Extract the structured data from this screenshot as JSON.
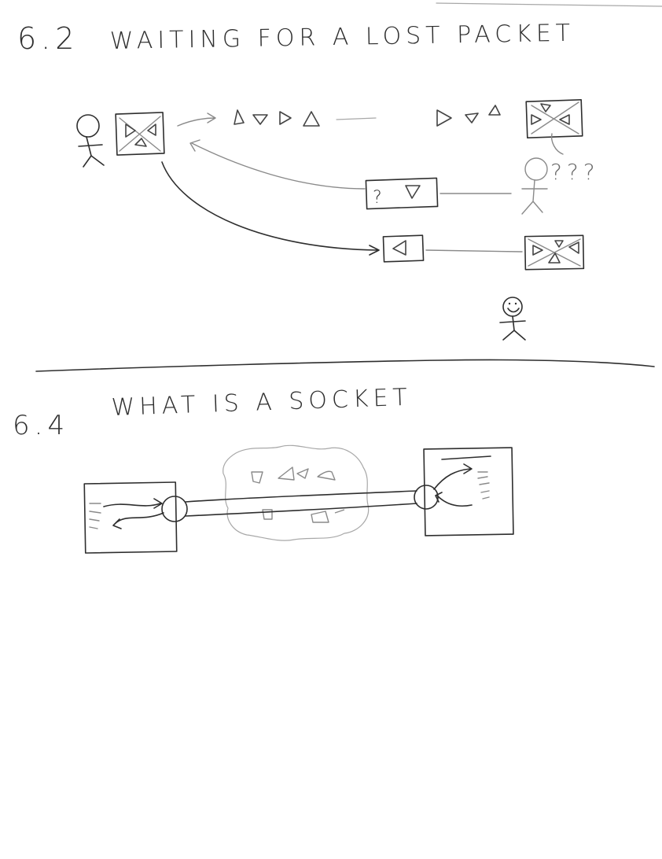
{
  "section_top": {
    "number": "6.2",
    "title": "WAITING FOR A LOST PACKET",
    "question_marks": "???",
    "box_question": "?"
  },
  "section_bottom": {
    "number": "6.4",
    "title": "WHAT IS A SOCKET"
  },
  "colors": {
    "ink": "#2e2e2e",
    "pencil_light": "#8a8a8a",
    "paper": "#ffffff"
  }
}
